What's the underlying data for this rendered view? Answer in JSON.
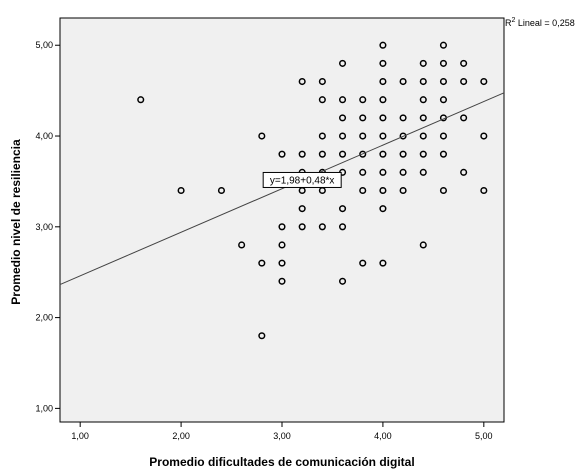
{
  "chart_data": {
    "type": "scatter",
    "title": "",
    "xlabel": "Promedio dificultades de comunicación digital",
    "ylabel": "Promedio nivel de resiliencia",
    "xlim": [
      0.8,
      5.2
    ],
    "ylim": [
      0.85,
      5.3
    ],
    "x_ticks": [
      "1,00",
      "2,00",
      "3,00",
      "4,00",
      "5,00"
    ],
    "y_ticks": [
      "1,00",
      "2,00",
      "3,00",
      "4,00",
      "5,00"
    ],
    "x_tick_values": [
      1,
      2,
      3,
      4,
      5
    ],
    "y_tick_values": [
      1,
      2,
      3,
      4,
      5
    ],
    "background": "#f0f0f0",
    "point_color": "#000000",
    "grid": false,
    "fit_line": {
      "intercept": 1.98,
      "slope": 0.48,
      "label": "y=1,98+0,48*x"
    },
    "r2_label": {
      "prefix": "R",
      "sup": "2",
      "suffix": " Lineal = 0,258"
    },
    "points": [
      [
        1.6,
        4.4
      ],
      [
        2.0,
        3.4
      ],
      [
        2.4,
        3.4
      ],
      [
        2.6,
        2.8
      ],
      [
        2.8,
        4.0
      ],
      [
        2.8,
        2.6
      ],
      [
        2.8,
        1.8
      ],
      [
        3.0,
        3.8
      ],
      [
        3.0,
        3.0
      ],
      [
        3.0,
        2.8
      ],
      [
        3.0,
        2.6
      ],
      [
        3.0,
        2.4
      ],
      [
        3.2,
        4.6
      ],
      [
        3.2,
        3.8
      ],
      [
        3.2,
        3.6
      ],
      [
        3.2,
        3.4
      ],
      [
        3.2,
        3.2
      ],
      [
        3.2,
        3.0
      ],
      [
        3.4,
        4.6
      ],
      [
        3.4,
        4.4
      ],
      [
        3.4,
        4.0
      ],
      [
        3.4,
        3.8
      ],
      [
        3.4,
        3.6
      ],
      [
        3.4,
        3.4
      ],
      [
        3.4,
        3.0
      ],
      [
        3.6,
        4.8
      ],
      [
        3.6,
        4.4
      ],
      [
        3.6,
        4.2
      ],
      [
        3.6,
        4.0
      ],
      [
        3.6,
        3.8
      ],
      [
        3.6,
        3.6
      ],
      [
        3.6,
        3.2
      ],
      [
        3.6,
        3.0
      ],
      [
        3.6,
        2.4
      ],
      [
        3.8,
        4.4
      ],
      [
        3.8,
        4.2
      ],
      [
        3.8,
        4.0
      ],
      [
        3.8,
        3.8
      ],
      [
        3.8,
        3.6
      ],
      [
        3.8,
        3.4
      ],
      [
        3.8,
        2.6
      ],
      [
        4.0,
        5.0
      ],
      [
        4.0,
        4.8
      ],
      [
        4.0,
        4.6
      ],
      [
        4.0,
        4.4
      ],
      [
        4.0,
        4.2
      ],
      [
        4.0,
        4.0
      ],
      [
        4.0,
        3.8
      ],
      [
        4.0,
        3.6
      ],
      [
        4.0,
        3.4
      ],
      [
        4.0,
        3.2
      ],
      [
        4.0,
        2.6
      ],
      [
        4.2,
        4.6
      ],
      [
        4.2,
        4.2
      ],
      [
        4.2,
        4.0
      ],
      [
        4.2,
        3.8
      ],
      [
        4.2,
        3.6
      ],
      [
        4.2,
        3.4
      ],
      [
        4.4,
        4.8
      ],
      [
        4.4,
        4.6
      ],
      [
        4.4,
        4.4
      ],
      [
        4.4,
        4.2
      ],
      [
        4.4,
        4.0
      ],
      [
        4.4,
        3.8
      ],
      [
        4.4,
        3.6
      ],
      [
        4.4,
        2.8
      ],
      [
        4.6,
        5.0
      ],
      [
        4.6,
        4.8
      ],
      [
        4.6,
        4.6
      ],
      [
        4.6,
        4.4
      ],
      [
        4.6,
        4.2
      ],
      [
        4.6,
        4.0
      ],
      [
        4.6,
        3.8
      ],
      [
        4.6,
        3.4
      ],
      [
        4.8,
        4.8
      ],
      [
        4.8,
        4.6
      ],
      [
        4.8,
        4.2
      ],
      [
        4.8,
        3.6
      ],
      [
        5.0,
        4.6
      ],
      [
        5.0,
        4.0
      ],
      [
        5.0,
        3.4
      ]
    ]
  }
}
